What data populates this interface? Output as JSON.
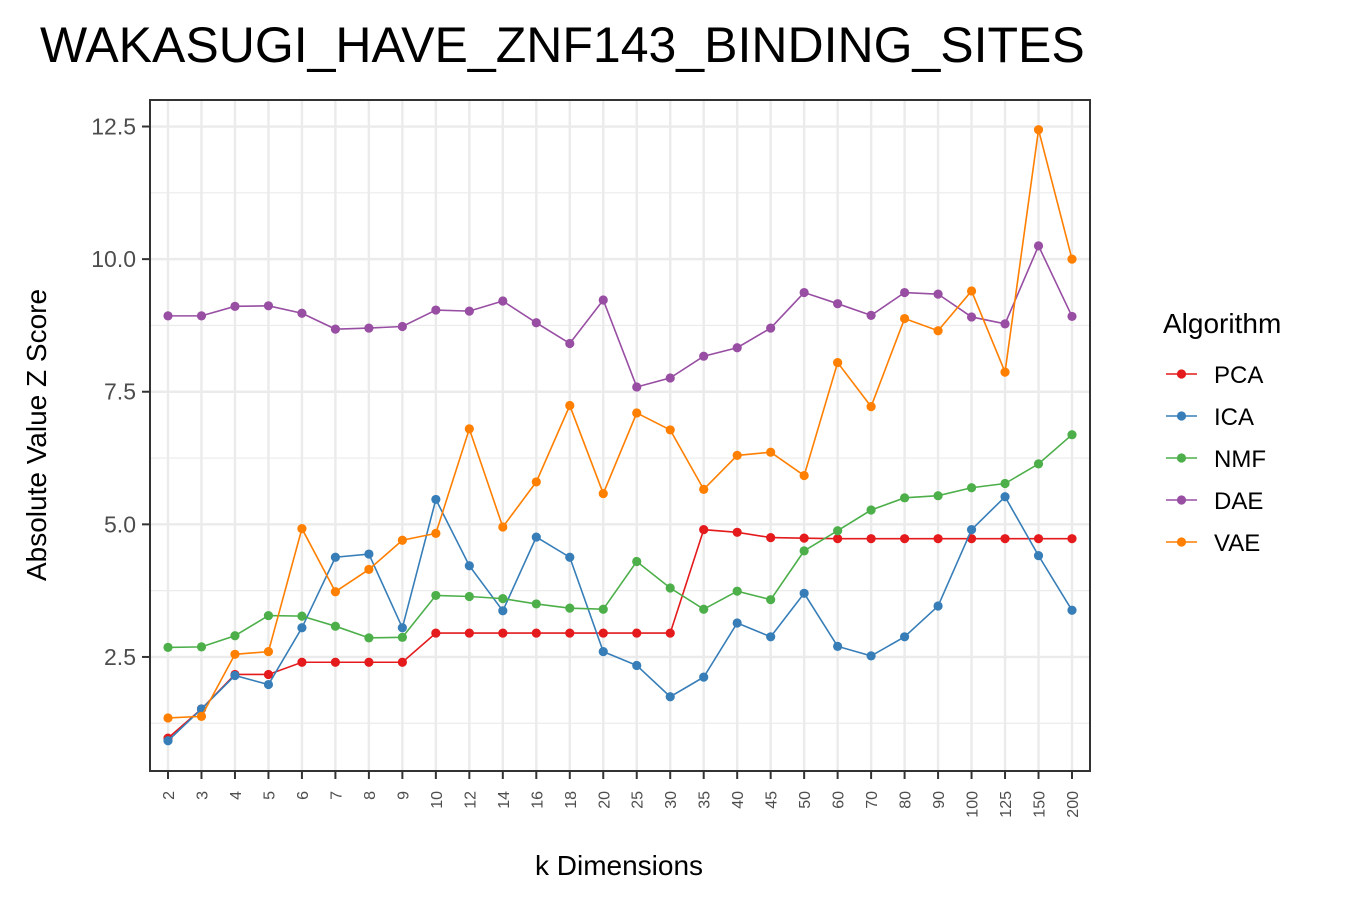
{
  "chart_data": {
    "type": "line",
    "title": "WAKASUGI_HAVE_ZNF143_BINDING_SITES",
    "xlabel": "k Dimensions",
    "ylabel": "Absolute Value Z Score",
    "categories": [
      "2",
      "3",
      "4",
      "5",
      "6",
      "7",
      "8",
      "9",
      "10",
      "12",
      "14",
      "16",
      "18",
      "20",
      "25",
      "30",
      "35",
      "40",
      "45",
      "50",
      "60",
      "70",
      "80",
      "90",
      "100",
      "125",
      "150",
      "200"
    ],
    "ylim": [
      0.35,
      13.0
    ],
    "yticks": [
      2.5,
      5.0,
      7.5,
      10.0,
      12.5
    ],
    "ytick_labels": [
      "2.5",
      "5.0",
      "7.5",
      "10.0",
      "12.5"
    ],
    "grid": true,
    "legend": {
      "title": "Algorithm",
      "position": "right"
    },
    "series": [
      {
        "name": "PCA",
        "color": "#e41a1c",
        "values": [
          0.97,
          1.52,
          2.17,
          2.17,
          2.4,
          2.4,
          2.4,
          2.4,
          2.95,
          2.95,
          2.95,
          2.95,
          2.95,
          2.95,
          2.95,
          2.95,
          4.9,
          4.85,
          4.75,
          4.74,
          4.73,
          4.73,
          4.73,
          4.73,
          4.73,
          4.73,
          4.73,
          4.73
        ]
      },
      {
        "name": "ICA",
        "color": "#377eb8",
        "values": [
          0.92,
          1.52,
          2.15,
          1.98,
          3.05,
          4.38,
          4.44,
          3.05,
          5.47,
          4.22,
          3.37,
          4.76,
          4.38,
          2.6,
          2.34,
          1.75,
          2.12,
          3.14,
          2.88,
          3.7,
          2.7,
          2.52,
          2.88,
          3.46,
          4.9,
          5.52,
          4.41,
          3.38
        ]
      },
      {
        "name": "NMF",
        "color": "#4daf4a",
        "values": [
          2.68,
          2.69,
          2.9,
          3.28,
          3.27,
          3.08,
          2.86,
          2.87,
          3.66,
          3.64,
          3.6,
          3.5,
          3.42,
          3.4,
          4.3,
          3.8,
          3.4,
          3.74,
          3.58,
          4.5,
          4.88,
          5.27,
          5.5,
          5.54,
          5.69,
          5.77,
          6.14,
          6.69
        ]
      },
      {
        "name": "DAE",
        "color": "#984ea3",
        "values": [
          8.93,
          8.93,
          9.11,
          9.12,
          8.98,
          8.68,
          8.7,
          8.73,
          9.04,
          9.02,
          9.21,
          8.8,
          8.41,
          9.23,
          7.59,
          7.76,
          8.17,
          8.33,
          8.7,
          9.37,
          9.16,
          8.94,
          9.37,
          9.34,
          8.91,
          8.78,
          10.25,
          8.92
        ]
      },
      {
        "name": "VAE",
        "color": "#ff7f00",
        "values": [
          1.35,
          1.38,
          2.55,
          2.6,
          4.92,
          3.73,
          4.15,
          4.7,
          4.83,
          6.8,
          4.95,
          5.8,
          7.24,
          5.58,
          7.1,
          6.78,
          5.66,
          6.3,
          6.36,
          5.92,
          8.05,
          7.22,
          8.88,
          8.65,
          9.4,
          7.87,
          12.44,
          10.0
        ]
      }
    ]
  }
}
